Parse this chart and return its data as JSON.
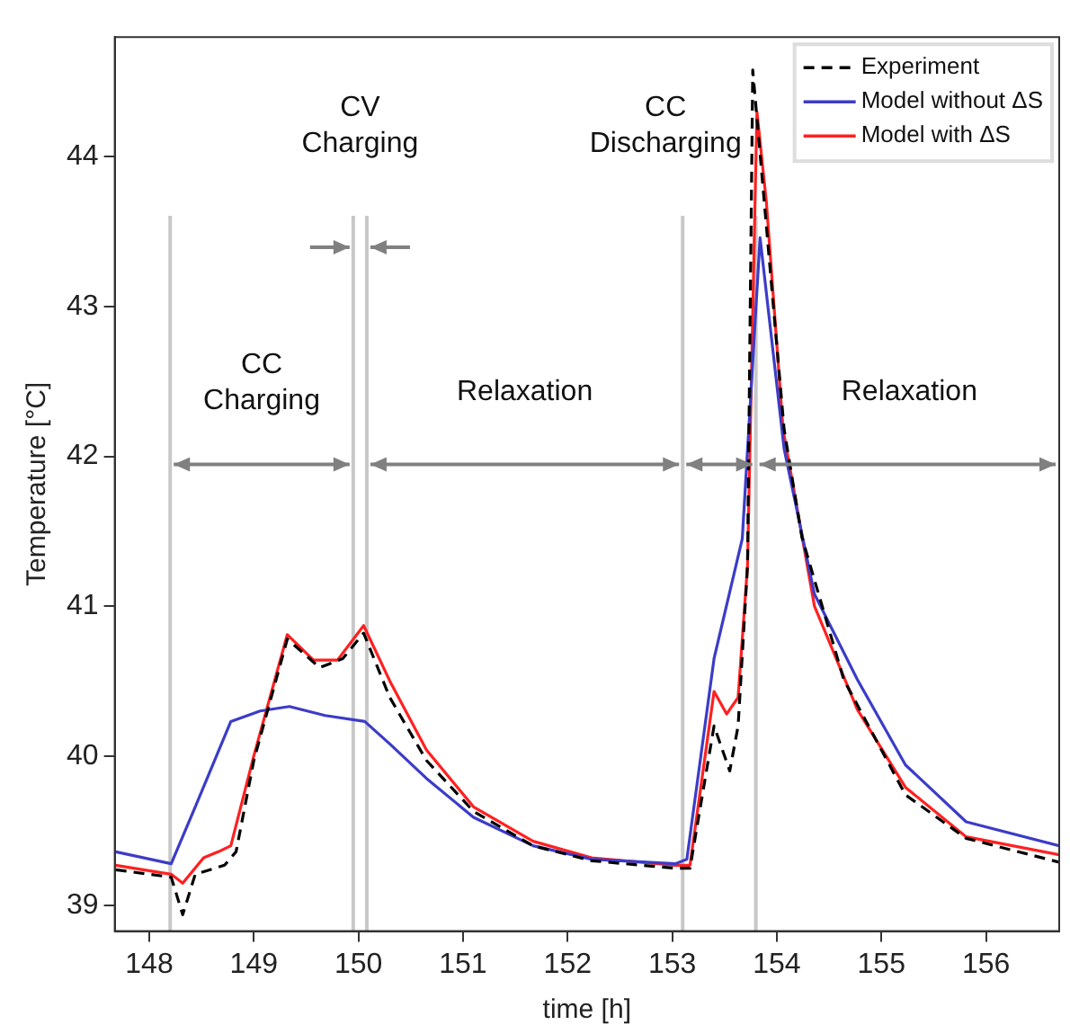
{
  "chart_data": {
    "type": "line",
    "xlabel": "time [h]",
    "ylabel": "Temperature [°C]",
    "xlim": [
      147.67,
      156.7
    ],
    "ylim": [
      38.83,
      44.8
    ],
    "xticks": [
      148,
      149,
      150,
      151,
      152,
      153,
      154,
      155,
      156
    ],
    "yticks": [
      39,
      40,
      41,
      42,
      43,
      44
    ],
    "grid": false,
    "legend": "top right",
    "series": [
      {
        "name": "Experiment",
        "color": "#000000",
        "line_style": "dashed",
        "x": [
          147.68,
          148.21,
          148.32,
          148.44,
          148.72,
          148.83,
          149.0,
          149.32,
          149.63,
          149.85,
          150.05,
          150.3,
          150.65,
          151.1,
          151.67,
          152.23,
          153.03,
          153.17,
          153.4,
          153.55,
          153.63,
          153.72,
          153.77,
          154.07,
          154.24,
          154.64,
          155.23,
          155.81,
          156.7
        ],
        "values": [
          39.24,
          39.19,
          38.94,
          39.21,
          39.27,
          39.36,
          39.97,
          40.78,
          40.59,
          40.65,
          40.82,
          40.39,
          39.97,
          39.63,
          39.4,
          39.3,
          39.25,
          39.25,
          40.2,
          39.9,
          40.2,
          41.27,
          44.58,
          42.18,
          41.46,
          40.51,
          39.74,
          39.45,
          39.29
        ]
      },
      {
        "name": "Model without ΔS",
        "color": "#3c3cc8",
        "line_style": "solid",
        "x": [
          147.68,
          148.21,
          148.44,
          148.78,
          149.06,
          149.34,
          149.68,
          150.06,
          150.3,
          150.65,
          151.1,
          151.67,
          152.23,
          153.03,
          153.14,
          153.4,
          153.67,
          153.84,
          154.07,
          154.36,
          154.77,
          155.23,
          155.81,
          156.7
        ],
        "values": [
          39.36,
          39.28,
          39.66,
          40.23,
          40.3,
          40.33,
          40.27,
          40.23,
          40.08,
          39.85,
          39.59,
          39.4,
          39.31,
          39.28,
          39.31,
          40.65,
          41.45,
          43.46,
          42.05,
          41.08,
          40.51,
          39.94,
          39.56,
          39.4
        ]
      },
      {
        "name": "Model with ΔS",
        "color": "#ff2020",
        "line_style": "solid",
        "x": [
          147.68,
          148.21,
          148.32,
          148.52,
          148.66,
          148.78,
          149.0,
          149.32,
          149.57,
          149.8,
          150.05,
          150.3,
          150.65,
          151.1,
          151.67,
          152.23,
          153.03,
          153.17,
          153.4,
          153.52,
          153.63,
          153.72,
          153.81,
          153.9,
          154.06,
          154.36,
          154.77,
          155.23,
          155.81,
          156.7
        ],
        "values": [
          39.27,
          39.21,
          39.15,
          39.32,
          39.36,
          39.4,
          40.0,
          40.81,
          40.64,
          40.64,
          40.87,
          40.5,
          40.04,
          39.66,
          39.43,
          39.32,
          39.27,
          39.27,
          40.43,
          40.28,
          40.39,
          41.27,
          44.3,
          43.7,
          42.18,
          41.0,
          40.31,
          39.79,
          39.46,
          39.34
        ]
      }
    ],
    "ref_lines": [
      {
        "axis": "x",
        "value": 148.2,
        "color": "#c8c8c8"
      },
      {
        "axis": "x",
        "value": 149.95,
        "color": "#c8c8c8"
      },
      {
        "axis": "x",
        "value": 150.08,
        "color": "#c8c8c8"
      },
      {
        "axis": "x",
        "value": 153.1,
        "color": "#c8c8c8"
      },
      {
        "axis": "x",
        "value": 153.8,
        "color": "#c8c8c8"
      }
    ],
    "annotations": [
      "CC\nCharging",
      "CV\nCharging",
      "Relaxation",
      "CC\nDischarging",
      "Relaxation"
    ]
  }
}
